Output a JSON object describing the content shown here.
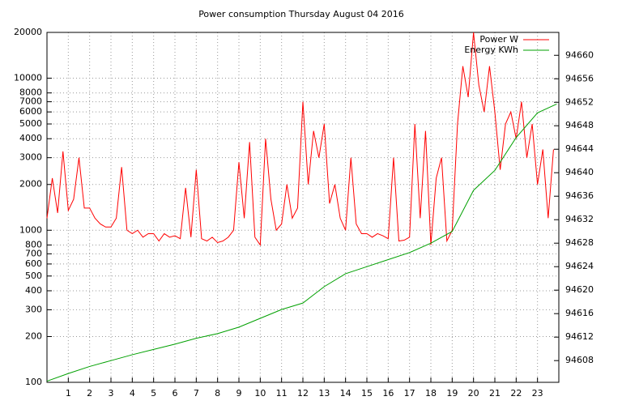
{
  "chart_data": {
    "type": "line",
    "title": "Power consumption Thursday August 04 2016",
    "xlim": [
      0,
      24
    ],
    "xticks": [
      1,
      2,
      3,
      4,
      5,
      6,
      7,
      8,
      9,
      10,
      11,
      12,
      13,
      14,
      15,
      16,
      17,
      18,
      19,
      20,
      21,
      22,
      23
    ],
    "ylim": [
      100,
      20000
    ],
    "log_y": true,
    "yticks": [
      100,
      200,
      300,
      400,
      500,
      600,
      700,
      800,
      1000,
      2000,
      3000,
      4000,
      5000,
      6000,
      7000,
      8000,
      10000,
      20000
    ],
    "y2lim": [
      94604.3,
      94663.9
    ],
    "y2ticks": [
      94608,
      94612,
      94616,
      94620,
      94624,
      94628,
      94632,
      94636,
      94640,
      94644,
      94648,
      94652,
      94656,
      94660
    ],
    "grid": true,
    "legend": "top-right",
    "series": [
      {
        "name": "Power W",
        "color": "#ff0000",
        "x": [
          0,
          0.25,
          0.5,
          0.75,
          1,
          1.25,
          1.5,
          1.75,
          2,
          2.25,
          2.5,
          2.75,
          3,
          3.25,
          3.5,
          3.75,
          4,
          4.25,
          4.5,
          4.75,
          5,
          5.25,
          5.5,
          5.75,
          6,
          6.25,
          6.5,
          6.75,
          7,
          7.25,
          7.5,
          7.75,
          8,
          8.25,
          8.5,
          8.75,
          9,
          9.25,
          9.5,
          9.75,
          10,
          10.25,
          10.5,
          10.75,
          11,
          11.25,
          11.5,
          11.75,
          12,
          12.25,
          12.5,
          12.75,
          13,
          13.25,
          13.5,
          13.75,
          14,
          14.25,
          14.5,
          14.75,
          15,
          15.25,
          15.5,
          15.75,
          16,
          16.25,
          16.5,
          16.75,
          17,
          17.25,
          17.5,
          17.75,
          18,
          18.25,
          18.5,
          18.75,
          19,
          19.25,
          19.5,
          19.75,
          20,
          20.25,
          20.5,
          20.75,
          21,
          21.25,
          21.5,
          21.75,
          22,
          22.25,
          22.5,
          22.75,
          23,
          23.25,
          23.5,
          23.75
        ],
        "values": [
          1200,
          2200,
          1300,
          3300,
          1350,
          1600,
          3000,
          1400,
          1400,
          1200,
          1100,
          1050,
          1050,
          1200,
          2600,
          1000,
          950,
          1000,
          900,
          950,
          950,
          850,
          950,
          900,
          920,
          880,
          1900,
          900,
          2500,
          880,
          850,
          900,
          830,
          850,
          900,
          1000,
          2800,
          1200,
          3800,
          900,
          800,
          4000,
          1600,
          1000,
          1100,
          2000,
          1200,
          1400,
          7000,
          2000,
          4500,
          3000,
          5000,
          1500,
          2000,
          1200,
          1000,
          3000,
          1100,
          950,
          950,
          900,
          950,
          920,
          880,
          3000,
          850,
          860,
          900,
          5000,
          1200,
          4500,
          800,
          2200,
          3000,
          850,
          1000,
          5000,
          12000,
          7500,
          20000,
          9000,
          6000,
          12000,
          6000,
          2500,
          5000,
          6000,
          4000,
          7000,
          3000,
          5000,
          2000,
          3400,
          1200,
          3400
        ]
      },
      {
        "name": "Energy KWh",
        "color": "#00a000",
        "axis": "y2",
        "x": [
          0,
          1,
          2,
          3,
          4,
          5,
          6,
          7,
          8,
          9,
          10,
          11,
          12,
          13,
          14,
          15,
          16,
          17,
          18,
          19,
          20,
          21,
          22,
          23,
          23.9
        ],
        "values": [
          94604.5,
          94605.8,
          94607.0,
          94608.0,
          94609.0,
          94609.9,
          94610.8,
          94611.8,
          94612.6,
          94613.7,
          94615.2,
          94616.7,
          94617.8,
          94620.6,
          94622.8,
          94624.0,
          94625.2,
          94626.4,
          94628.0,
          94630.0,
          94637.0,
          94640.4,
          94646.0,
          94650.2,
          94651.7
        ]
      }
    ]
  }
}
